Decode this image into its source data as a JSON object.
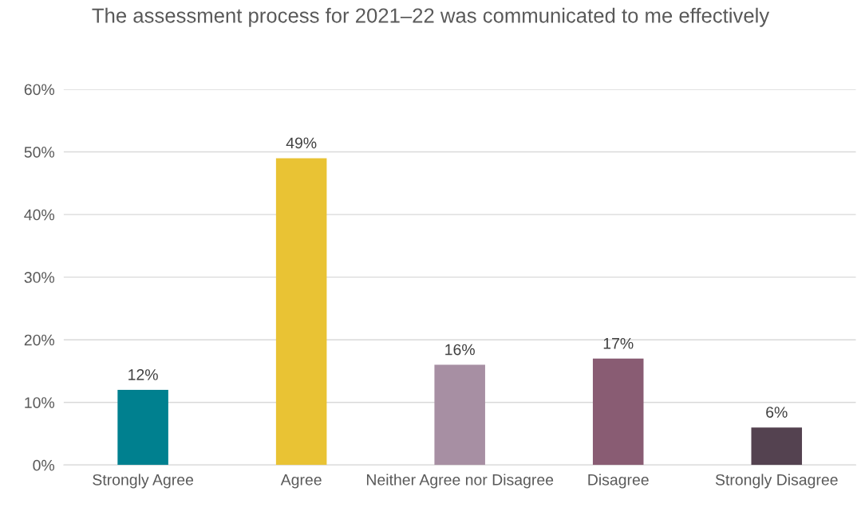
{
  "chart_data": {
    "type": "bar",
    "title": "The assessment process for 2021–22 was communicated to me effectively",
    "categories": [
      "Strongly Agree",
      "Agree",
      "Neither Agree nor Disagree",
      "Disagree",
      "Strongly Disagree"
    ],
    "values": [
      12,
      49,
      16,
      17,
      6
    ],
    "value_labels": [
      "12%",
      "49%",
      "16%",
      "17%",
      "6%"
    ],
    "colors": [
      "#00808f",
      "#e9c334",
      "#a78fa3",
      "#895c73",
      "#544250"
    ],
    "ylim": [
      0,
      60
    ],
    "yticks": [
      {
        "value": 0,
        "label": "0%"
      },
      {
        "value": 10,
        "label": "10%"
      },
      {
        "value": 20,
        "label": "20%"
      },
      {
        "value": 30,
        "label": "30%"
      },
      {
        "value": 40,
        "label": "40%"
      },
      {
        "value": 50,
        "label": "50%"
      },
      {
        "value": 60,
        "label": "60%"
      }
    ],
    "grid": "y",
    "legend": false
  }
}
